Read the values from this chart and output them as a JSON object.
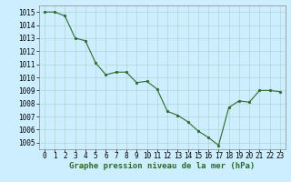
{
  "x": [
    0,
    1,
    2,
    3,
    4,
    5,
    6,
    7,
    8,
    9,
    10,
    11,
    12,
    13,
    14,
    15,
    16,
    17,
    18,
    19,
    20,
    21,
    22,
    23
  ],
  "y": [
    1015,
    1015,
    1014.7,
    1013,
    1012.8,
    1011.1,
    1010.2,
    1010.4,
    1010.4,
    1009.6,
    1009.7,
    1009.1,
    1007.4,
    1007.1,
    1006.6,
    1005.9,
    1005.4,
    1004.8,
    1007.7,
    1008.2,
    1008.1,
    1009.0,
    1009.0,
    1008.9
  ],
  "line_color": "#2d6a2d",
  "marker_color": "#2d6a2d",
  "bg_color": "#cceeff",
  "grid_color": "#aacccc",
  "xlabel": "Graphe pression niveau de la mer (hPa)",
  "ylim_min": 1004.5,
  "ylim_max": 1015.5,
  "ytick_min": 1005,
  "ytick_max": 1015,
  "ytick_step": 1,
  "xlabel_fontsize": 6.5,
  "tick_fontsize": 5.5
}
